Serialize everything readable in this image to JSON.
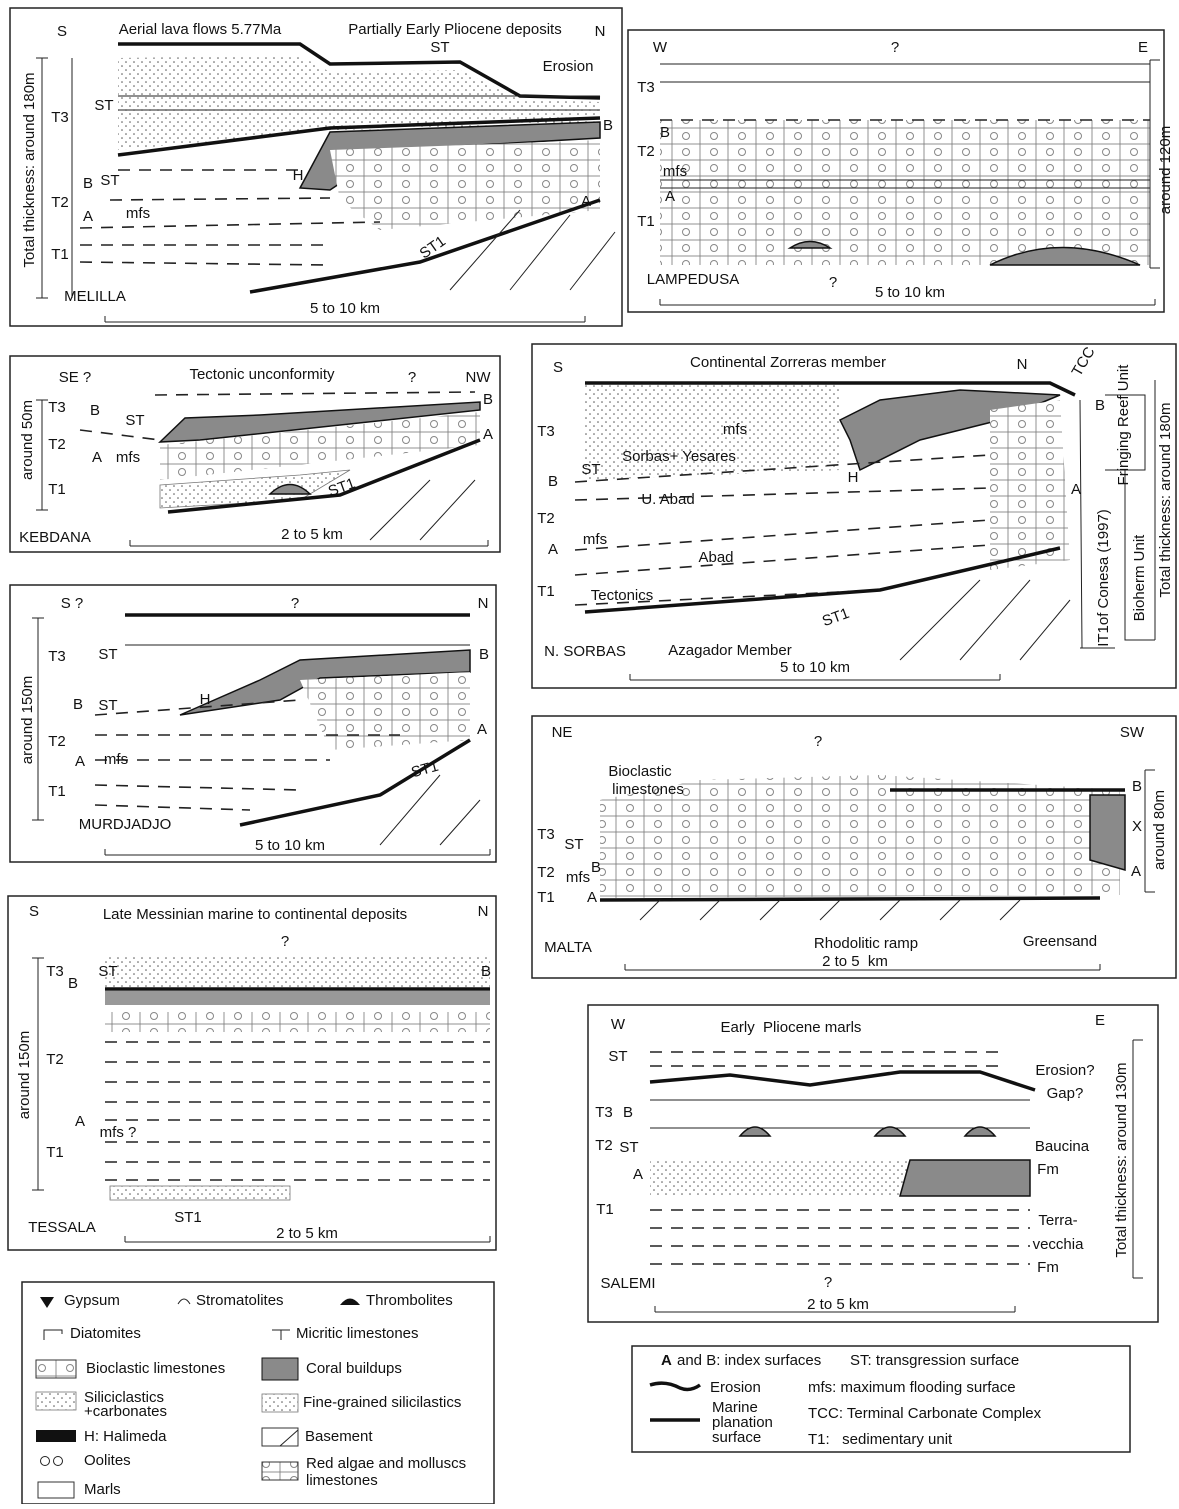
{
  "panels": [
    {
      "labels": [
        "S",
        "Aerial lava flows 5.77Ma",
        "Partially Early Pliocene deposits",
        "N",
        "ST",
        "Erosion",
        "ST",
        "T3",
        "B",
        "H",
        "B",
        "ST",
        "T2",
        "A",
        "mfs",
        "A",
        "T1",
        "ST1",
        "Total thickness: around 180m",
        "MELILLA",
        "5 to 10 km"
      ]
    },
    {
      "labels": [
        "W",
        "?",
        "E",
        "T3",
        "B",
        "T2",
        "mfs",
        "A",
        "T1",
        "around 120m",
        "LAMPEDUSA",
        "?",
        "5 to 10 km"
      ]
    },
    {
      "labels": [
        "SE ?",
        "Tectonic unconformity",
        "?",
        "NW",
        "T3",
        "B",
        "ST",
        "B",
        "T2",
        "A",
        "mfs",
        "A",
        "T1",
        "ST1",
        "around 50m",
        "KEBDANA",
        "2 to 5 km"
      ]
    },
    {
      "labels": [
        "S",
        "Continental Zorreras member",
        "N",
        "TCC",
        "T3",
        "mfs",
        "Sorbas+ Yesares",
        "ST",
        "H",
        "B",
        "U. Abad",
        "T2",
        "mfs",
        "A",
        "Abad",
        "T1",
        "Tectonics",
        "ST1",
        "N. SORBAS",
        "Azagador Member",
        "5 to 10 km",
        "B",
        "A",
        "Fringing Reef Unit",
        "Total thickness: around 180m",
        "IT1of Conesa (1997)",
        "Bioherm Unit"
      ]
    },
    {
      "labels": [
        "S ?",
        "?",
        "N",
        "T3",
        "ST",
        "B",
        "H",
        "B",
        "ST",
        "T2",
        "A",
        "mfs",
        "A",
        "T1",
        "ST1",
        "around 150m",
        "MURDJADJO",
        "5 to 10 km"
      ]
    },
    {
      "labels": [
        "NE",
        "?",
        "SW",
        "Bioclastic",
        "limestones",
        "B",
        "X",
        "T3",
        "ST",
        "B",
        "mfs",
        "T2",
        "A",
        "T1",
        "A",
        "Rhodolitic ramp",
        "Greensand",
        "2 to 5  km",
        "MALTA",
        "around 80m"
      ]
    },
    {
      "labels": [
        "S",
        "Late Messinian marine to continental deposits",
        "N",
        "?",
        "T3",
        "B",
        "ST",
        "B",
        "T2",
        "A",
        "mfs ?",
        "T1",
        "ST1",
        "TESSALA",
        "2 to 5 km",
        "around 150m"
      ]
    },
    {
      "labels": [
        "W",
        "Early  Pliocene marls",
        "E",
        "ST",
        "Erosion?",
        "Gap?",
        "T3",
        "B",
        "T2",
        "ST",
        "Baucina",
        "Fm",
        "A",
        "T1",
        "Terra-",
        "vecchia",
        "Fm",
        "Total thickness: around 130m",
        "SALEMI",
        "?",
        "2 to 5 km"
      ]
    }
  ],
  "legend": {
    "items": [
      "Gypsum",
      "Stromatolites",
      "Thrombolites",
      "Diatomites",
      "Micritic limestones",
      "Bioclastic limestones",
      "Coral buildups",
      "Siliciclastics",
      "+carbonates",
      "Fine-grained silicilastics",
      "H: Halimeda",
      "Basement",
      "Oolites",
      "Red algae and molluscs",
      "limestones",
      "Marls"
    ]
  },
  "key": {
    "items": [
      "A",
      "and B: index surfaces",
      "ST: transgression surface",
      "Erosion",
      "mfs: maximum flooding surface",
      "Marine",
      "planation",
      "surface",
      "TCC: Terminal Carbonate Complex",
      "T1:   sedimentary unit"
    ]
  }
}
